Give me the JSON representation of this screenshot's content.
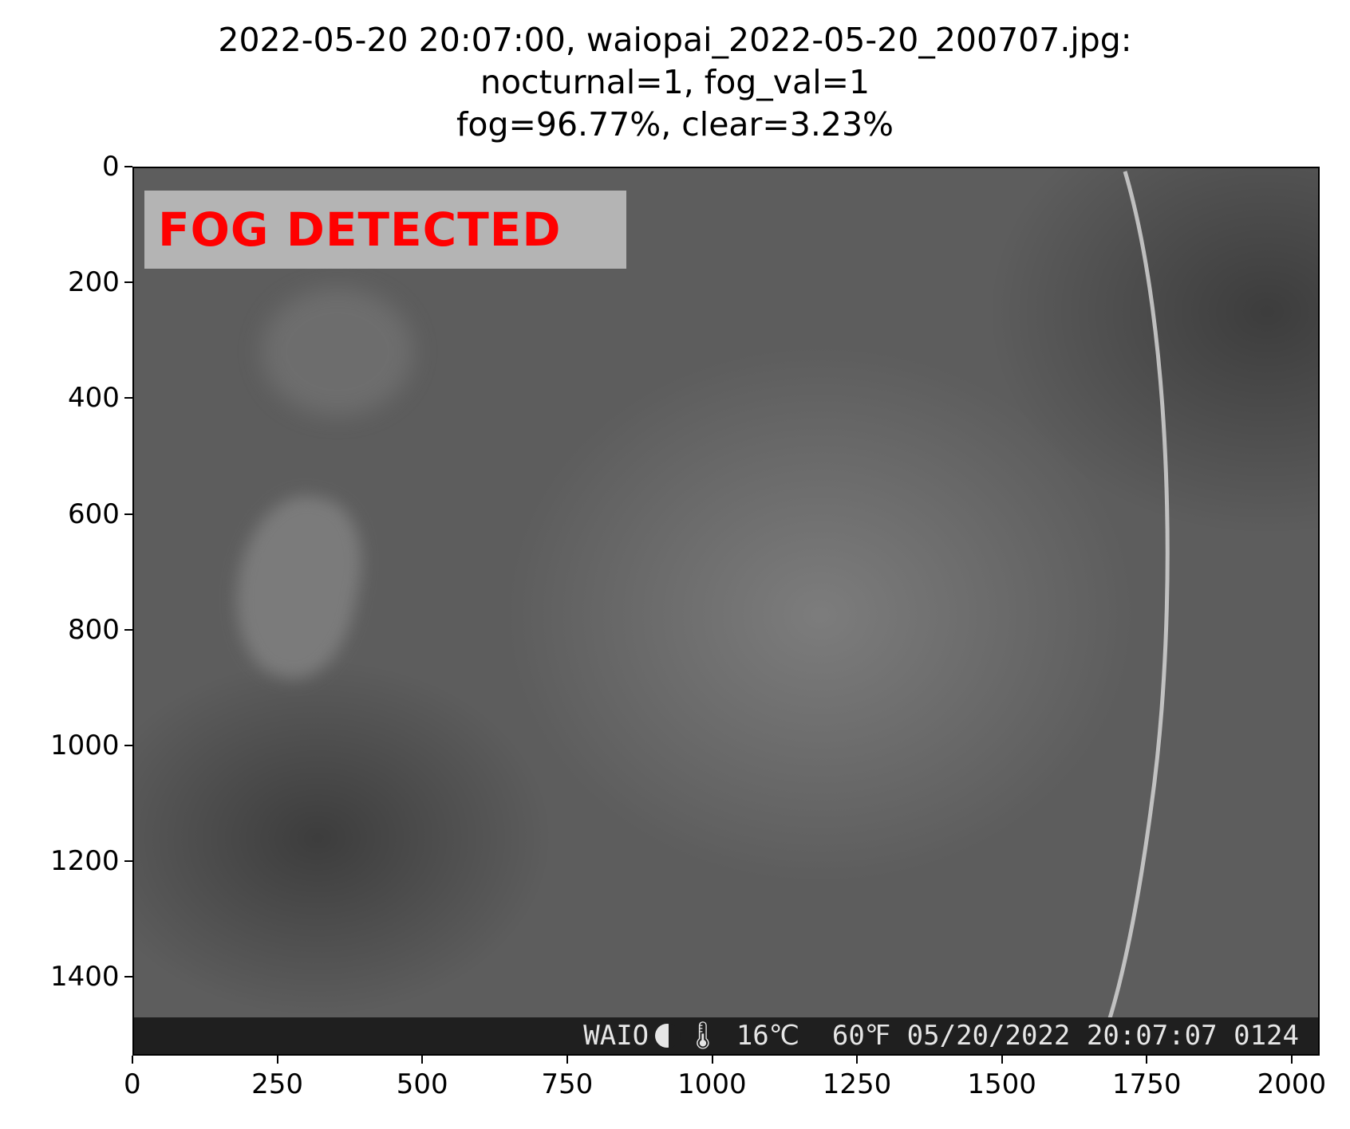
{
  "title_lines": [
    "2022-05-20 20:07:00, waiopai_2022-05-20_200707.jpg:",
    "nocturnal=1, fog_val=1",
    "fog=96.77%, clear=3.23%"
  ],
  "overlay_label": "FOG DETECTED",
  "camera_stamp": {
    "site": "WAIO",
    "moon_icon": "moon-phase-icon",
    "thermometer_icon": "thermometer-icon",
    "temp_c": "16℃",
    "temp_f": "60℉",
    "date": "05/20/2022",
    "time": "20:07:07",
    "frame": "0124"
  },
  "x_axis": {
    "ticks": [
      "0",
      "250",
      "500",
      "750",
      "1000",
      "1250",
      "1500",
      "1750",
      "2000"
    ],
    "range": [
      0,
      2048
    ]
  },
  "y_axis": {
    "ticks": [
      "0",
      "200",
      "400",
      "600",
      "800",
      "1000",
      "1200",
      "1400"
    ],
    "range": [
      0,
      1536
    ]
  },
  "colors": {
    "label_text": "#ff0000",
    "label_box": "#b4b4b4",
    "stamp_bar": "#1f1f1f"
  }
}
